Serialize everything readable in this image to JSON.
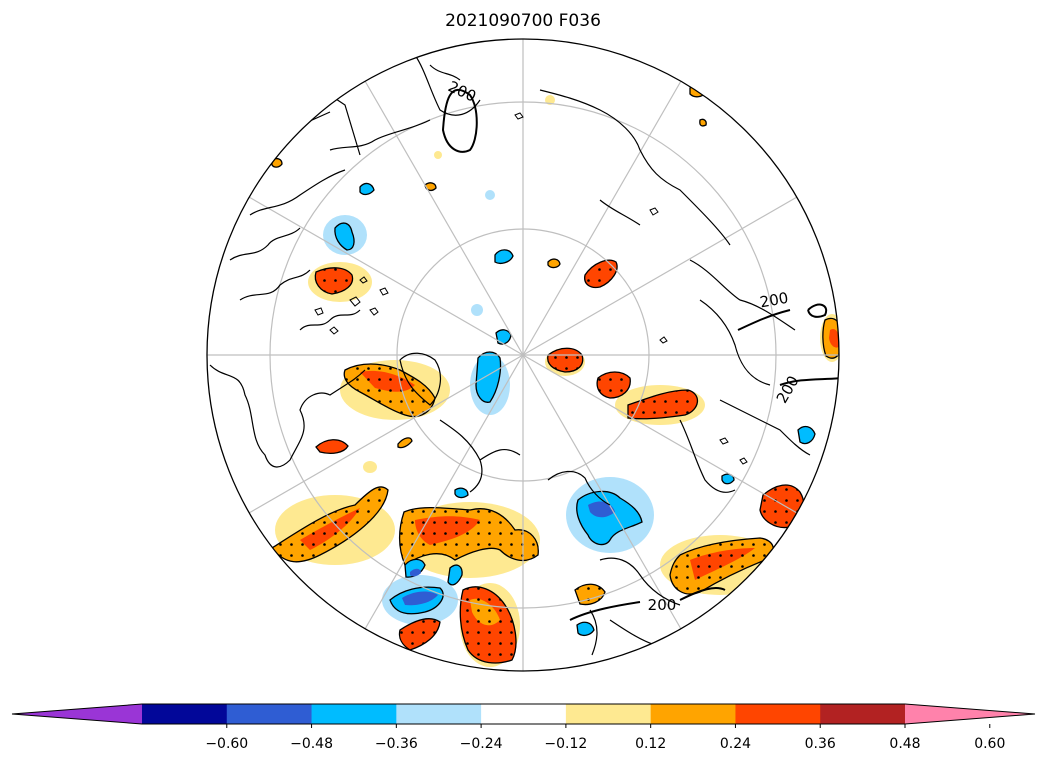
{
  "title": "2021090700 F036",
  "colorbar": {
    "ticks": [
      "−0.60",
      "−0.48",
      "−0.36",
      "−0.24",
      "−0.12",
      "0.12",
      "0.24",
      "0.36",
      "0.48",
      "0.60"
    ],
    "extend": "both",
    "bin_colors": [
      "#9a35d6",
      "#020799",
      "#2f5dd3",
      "#00bcff",
      "#b0e1fb",
      "#ffffff",
      "#fee991",
      "#ffa400",
      "#ff4500",
      "#b22222",
      "#ff82ab"
    ]
  },
  "contour_labels": [
    "200",
    "200",
    "200",
    "200"
  ],
  "colors": {
    "coast": "#000000",
    "grid": "#bfbfbf",
    "contour": "#000000"
  }
}
